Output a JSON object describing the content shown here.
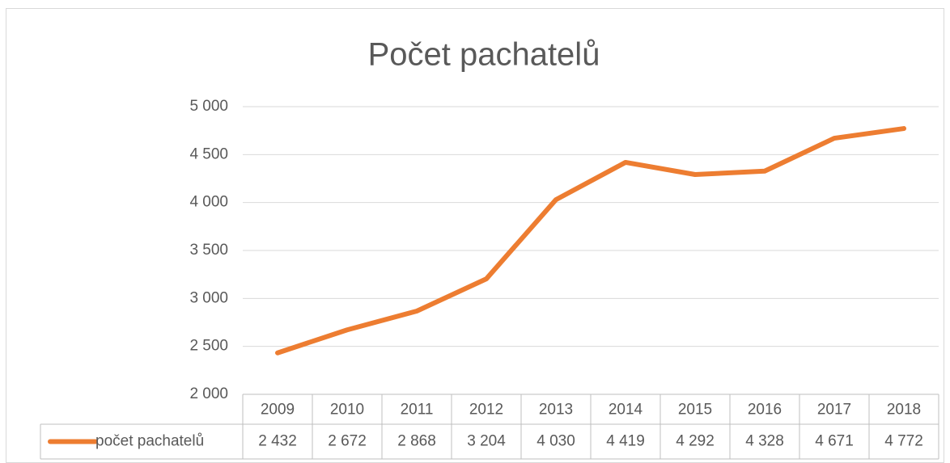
{
  "chart_data": {
    "type": "line",
    "title": "Počet pachatelů",
    "categories": [
      "2009",
      "2010",
      "2011",
      "2012",
      "2013",
      "2014",
      "2015",
      "2016",
      "2017",
      "2018"
    ],
    "series": [
      {
        "name": "počet pachatelů",
        "color": "#ed7d31",
        "values": [
          2432,
          2672,
          2868,
          3204,
          4030,
          4419,
          4292,
          4328,
          4671,
          4772
        ],
        "value_labels": [
          "2 432",
          "2 672",
          "2 868",
          "3 204",
          "4 030",
          "4 419",
          "4 292",
          "4 328",
          "4 671",
          "4 772"
        ]
      }
    ],
    "ylim": [
      2000,
      5000
    ],
    "yticks": [
      {
        "value": 2000,
        "label": "2 000"
      },
      {
        "value": 2500,
        "label": "2 500"
      },
      {
        "value": 3000,
        "label": "3 000"
      },
      {
        "value": 3500,
        "label": "3 500"
      },
      {
        "value": 4000,
        "label": "4 000"
      },
      {
        "value": 4500,
        "label": "4 500"
      },
      {
        "value": 5000,
        "label": "5 000"
      }
    ],
    "grid": true,
    "data_table": true
  }
}
